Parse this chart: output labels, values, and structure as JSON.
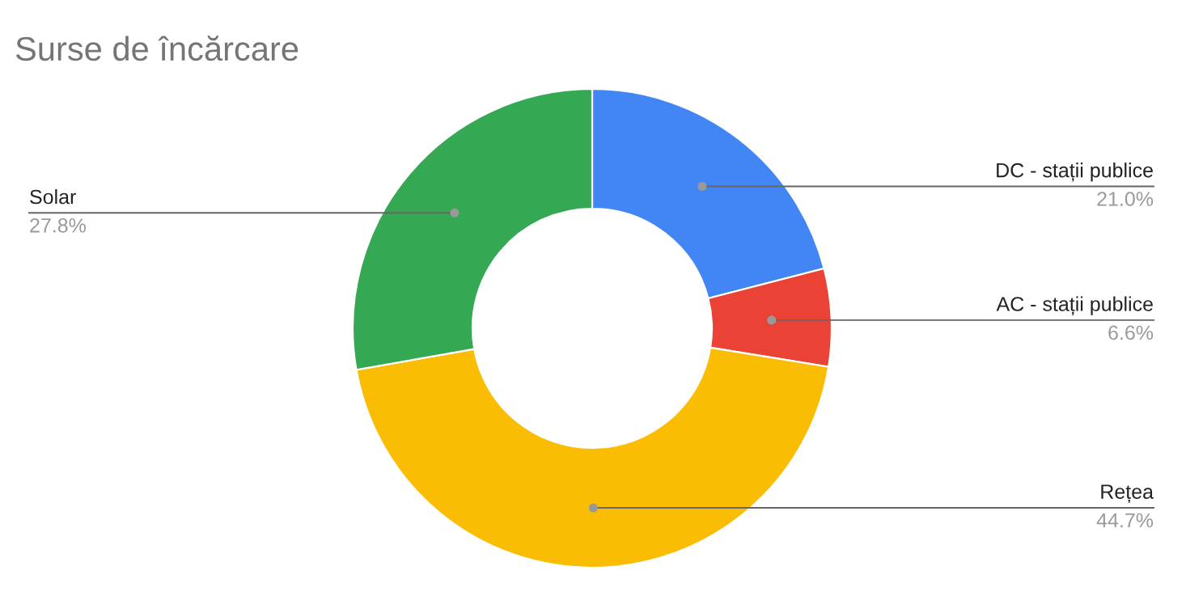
{
  "chart_data": {
    "type": "donut",
    "title": "Surse de încărcare",
    "categories": [
      "DC - stații publice",
      "AC - stații publice",
      "Rețea",
      "Solar"
    ],
    "values": [
      21.0,
      6.6,
      44.7,
      27.8
    ],
    "colors": [
      "#4285f4",
      "#ea4335",
      "#fbbc04",
      "#34a853"
    ],
    "value_labels": [
      "21.0%",
      "6.6%",
      "44.7%",
      "27.8%"
    ]
  }
}
